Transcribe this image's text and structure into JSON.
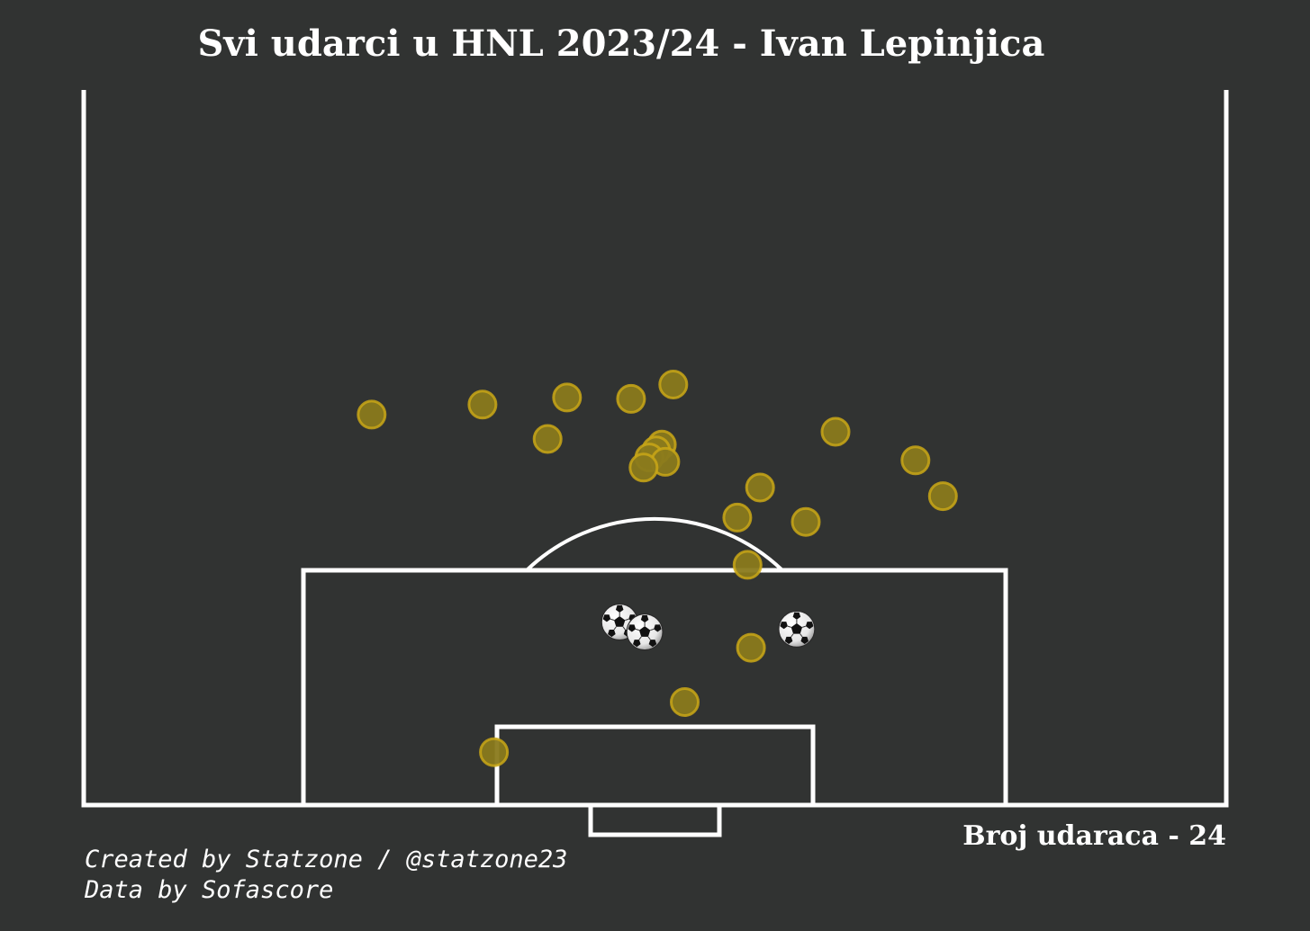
{
  "title": "Svi udarci u HNL 2023/24 - Ivan Lepinjica",
  "credits": {
    "line1": "Created by Statzone / @statzone23",
    "line2": "Data by Sofascore"
  },
  "shot_count": {
    "label": "Broj udaraca - 24"
  },
  "colors": {
    "background": "#313332",
    "lines": "#ffffff",
    "shot_fill": "#8a7a1c",
    "shot_edge": "#c9a716"
  },
  "chart_data": {
    "type": "scatter",
    "title": "Svi udarci u HNL 2023/24 - Ivan Lepinjica",
    "xlabel": "",
    "ylabel": "",
    "pitch": "half-pitch, goal at bottom",
    "xlim": [
      0,
      100
    ],
    "ylim": [
      50,
      100
    ],
    "series": [
      {
        "outcome": "no-goal",
        "marker": "circle",
        "points": [
          {
            "x": 25.2,
            "y": 77.3
          },
          {
            "x": 34.9,
            "y": 78.0
          },
          {
            "x": 42.3,
            "y": 78.5
          },
          {
            "x": 47.9,
            "y": 78.4
          },
          {
            "x": 51.6,
            "y": 79.4
          },
          {
            "x": 40.6,
            "y": 75.6
          },
          {
            "x": 50.6,
            "y": 75.2
          },
          {
            "x": 50.1,
            "y": 74.8
          },
          {
            "x": 49.5,
            "y": 74.3
          },
          {
            "x": 50.9,
            "y": 74.0
          },
          {
            "x": 49.0,
            "y": 73.6
          },
          {
            "x": 65.8,
            "y": 76.1
          },
          {
            "x": 72.8,
            "y": 74.1
          },
          {
            "x": 59.2,
            "y": 72.2
          },
          {
            "x": 75.2,
            "y": 71.6
          },
          {
            "x": 57.2,
            "y": 70.1
          },
          {
            "x": 63.2,
            "y": 69.8
          },
          {
            "x": 58.1,
            "y": 66.8
          },
          {
            "x": 58.4,
            "y": 61.0
          },
          {
            "x": 52.6,
            "y": 57.2
          },
          {
            "x": 35.9,
            "y": 53.7
          }
        ]
      },
      {
        "outcome": "goal",
        "marker": "ball",
        "points": [
          {
            "x": 46.9,
            "y": 62.8
          },
          {
            "x": 49.1,
            "y": 62.1
          },
          {
            "x": 62.4,
            "y": 62.3
          }
        ]
      }
    ]
  }
}
